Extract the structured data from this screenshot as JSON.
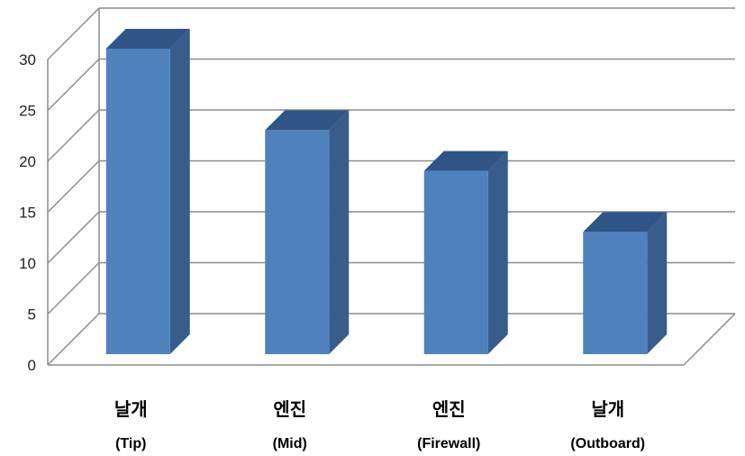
{
  "chart_data": {
    "type": "bar",
    "categories": [
      {
        "line1": "날개",
        "line2": "(Tip)"
      },
      {
        "line1": "엔진",
        "line2": "(Mid)"
      },
      {
        "line1": "엔진",
        "line2": "(Firewall)"
      },
      {
        "line1": "날개",
        "line2": "(Outboard)"
      }
    ],
    "values": [
      30,
      22,
      18,
      12
    ],
    "title": "",
    "xlabel": "",
    "ylabel": "",
    "ylim": [
      0,
      30
    ],
    "yticks": [
      "0",
      "5",
      "10",
      "15",
      "20",
      "25",
      "30"
    ],
    "grid": true,
    "legend": "none",
    "style": "3d-column",
    "colors": {
      "bar_front": "#4f81bd",
      "bar_side": "#385d8a",
      "bar_top": "#2f5486",
      "grid": "#8c8c8c"
    }
  }
}
